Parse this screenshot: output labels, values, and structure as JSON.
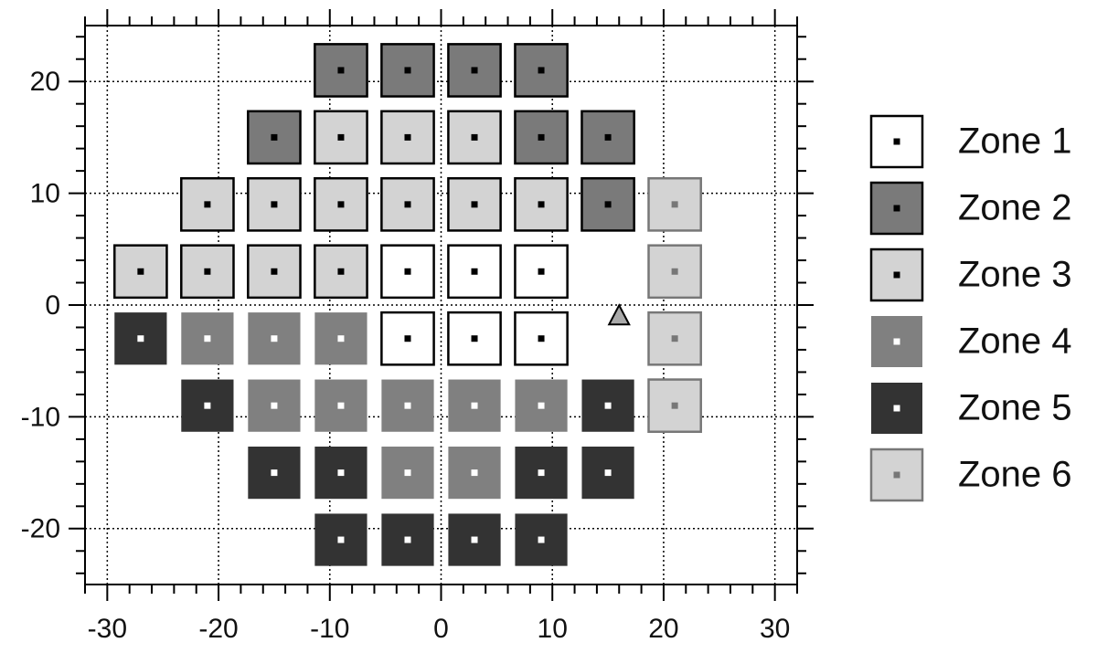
{
  "chart_data": {
    "type": "scatter",
    "xlim": [
      -32,
      32
    ],
    "ylim": [
      -25,
      25
    ],
    "xticks": [
      -30,
      -20,
      -10,
      0,
      10,
      20,
      30
    ],
    "yticks": [
      -20,
      -10,
      0,
      10,
      20
    ],
    "grid": true,
    "legend": "right",
    "series": [
      {
        "name": "Zone 1",
        "color": "#ffffff",
        "edge": "#000000",
        "dot": "#000000",
        "x": [
          -3,
          3,
          9,
          -3,
          3,
          9
        ],
        "y": [
          3,
          3,
          3,
          -3,
          -3,
          -3
        ]
      },
      {
        "name": "Zone 2",
        "color": "#7a7a7a",
        "edge": "#000000",
        "dot": "#000000",
        "x": [
          -9,
          -3,
          3,
          9,
          -15,
          9,
          15,
          15
        ],
        "y": [
          21,
          21,
          21,
          21,
          15,
          15,
          15,
          9
        ]
      },
      {
        "name": "Zone 3",
        "color": "#d3d3d3",
        "edge": "#000000",
        "dot": "#000000",
        "x": [
          -9,
          -3,
          3,
          -21,
          -15,
          -9,
          -3,
          3,
          9,
          -27,
          -21,
          -15,
          -9
        ],
        "y": [
          15,
          15,
          15,
          9,
          9,
          9,
          9,
          9,
          9,
          3,
          3,
          3,
          3
        ]
      },
      {
        "name": "Zone 4",
        "color": "#808080",
        "edge": null,
        "dot": "#ffffff",
        "x": [
          -21,
          -15,
          -9,
          -15,
          -9,
          -3,
          3,
          9,
          -3,
          3
        ],
        "y": [
          -3,
          -3,
          -3,
          -9,
          -9,
          -9,
          -9,
          -9,
          -15,
          -15
        ]
      },
      {
        "name": "Zone 5",
        "color": "#333333",
        "edge": null,
        "dot": "#ffffff",
        "x": [
          -27,
          -21,
          15,
          -15,
          -9,
          9,
          15,
          -9,
          -3,
          3,
          9
        ],
        "y": [
          -3,
          -9,
          -9,
          -15,
          -15,
          -15,
          -15,
          -21,
          -21,
          -21,
          -21
        ]
      },
      {
        "name": "Zone 6",
        "color": "#d3d3d3",
        "edge": "#777777",
        "dot": "#777777",
        "x": [
          21,
          21,
          21,
          21
        ],
        "y": [
          9,
          3,
          -3,
          -9
        ]
      }
    ],
    "markers": [
      {
        "shape": "triangle",
        "x": 16,
        "y": -1,
        "color": "#aaaaaa"
      }
    ]
  }
}
